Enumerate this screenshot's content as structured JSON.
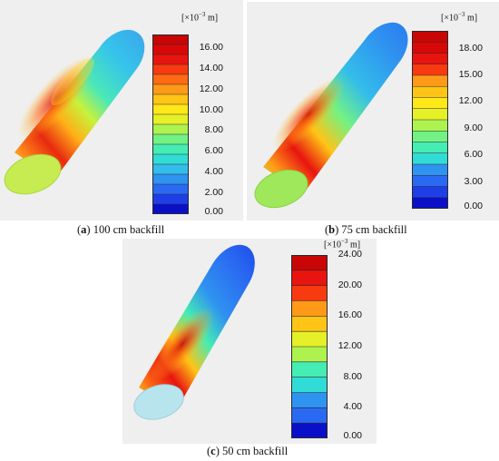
{
  "panels": [
    {
      "caption_letter": "a",
      "caption_text": "100 cm backfill",
      "unit_label_prefix": "[×10",
      "unit_label_exp": "−3",
      "unit_label_suffix": " m]",
      "ticks": [
        "16.00",
        "14.00",
        "12.00",
        "10.00",
        "8.00",
        "6.00",
        "4.00",
        "2.00",
        "0.00"
      ],
      "range": [
        0,
        17.3
      ],
      "bands": 18
    },
    {
      "caption_letter": "b",
      "caption_text": "75 cm backfill",
      "unit_label_prefix": "[×10",
      "unit_label_exp": "−3",
      "unit_label_suffix": " m]",
      "ticks": [
        "18.00",
        "15.00",
        "12.00",
        "9.00",
        "6.00",
        "3.00",
        "0.00"
      ],
      "range": [
        0,
        20
      ],
      "bands": 16
    },
    {
      "caption_letter": "c",
      "caption_text": "50 cm backfill",
      "unit_label_prefix": "[×10",
      "unit_label_exp": "−3",
      "unit_label_suffix": " m]",
      "ticks": [
        "24.00",
        "20.00",
        "16.00",
        "12.00",
        "8.00",
        "4.00",
        "0.00"
      ],
      "range": [
        0,
        24
      ],
      "bands": 12
    }
  ],
  "colors": {
    "scale": [
      "#0a10c8",
      "#1e3ee8",
      "#2a6af2",
      "#2f93f0",
      "#33bdea",
      "#32dcd6",
      "#45ecb4",
      "#72f284",
      "#aef250",
      "#e6f028",
      "#ffe818",
      "#ffc415",
      "#ff9a18",
      "#ff6a12",
      "#f83a10",
      "#e81410",
      "#d80808",
      "#c80606"
    ]
  }
}
